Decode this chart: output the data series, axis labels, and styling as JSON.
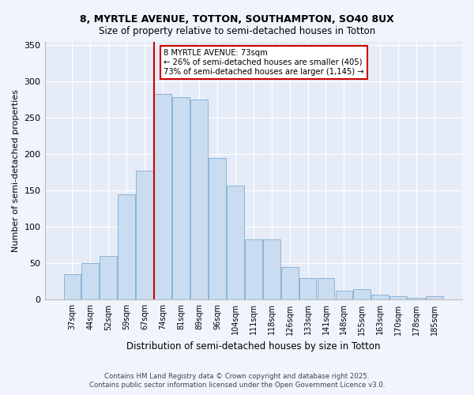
{
  "title1": "8, MYRTLE AVENUE, TOTTON, SOUTHAMPTON, SO40 8UX",
  "title2": "Size of property relative to semi-detached houses in Totton",
  "xlabel": "Distribution of semi-detached houses by size in Totton",
  "ylabel": "Number of semi-detached properties",
  "categories": [
    "37sqm",
    "44sqm",
    "52sqm",
    "59sqm",
    "67sqm",
    "74sqm",
    "81sqm",
    "89sqm",
    "96sqm",
    "104sqm",
    "111sqm",
    "118sqm",
    "126sqm",
    "133sqm",
    "141sqm",
    "148sqm",
    "155sqm",
    "163sqm",
    "170sqm",
    "178sqm",
    "185sqm"
  ],
  "values": [
    35,
    50,
    60,
    145,
    177,
    283,
    278,
    275,
    195,
    157,
    83,
    83,
    45,
    30,
    30,
    12,
    15,
    7,
    5,
    3,
    5
  ],
  "bar_color": "#c9dcf0",
  "bar_edge_color": "#8ab4d8",
  "vline_color": "#cc0000",
  "annotation_text": "8 MYRTLE AVENUE: 73sqm\n← 26% of semi-detached houses are smaller (405)\n73% of semi-detached houses are larger (1,145) →",
  "annotation_box_color": "#cc0000",
  "ylim": [
    0,
    355
  ],
  "yticks": [
    0,
    50,
    100,
    150,
    200,
    250,
    300,
    350
  ],
  "footer1": "Contains HM Land Registry data © Crown copyright and database right 2025.",
  "footer2": "Contains public sector information licensed under the Open Government Licence v3.0.",
  "bg_color": "#f0f4fc",
  "plot_bg_color": "#e6ecf7",
  "grid_color": "#ffffff"
}
